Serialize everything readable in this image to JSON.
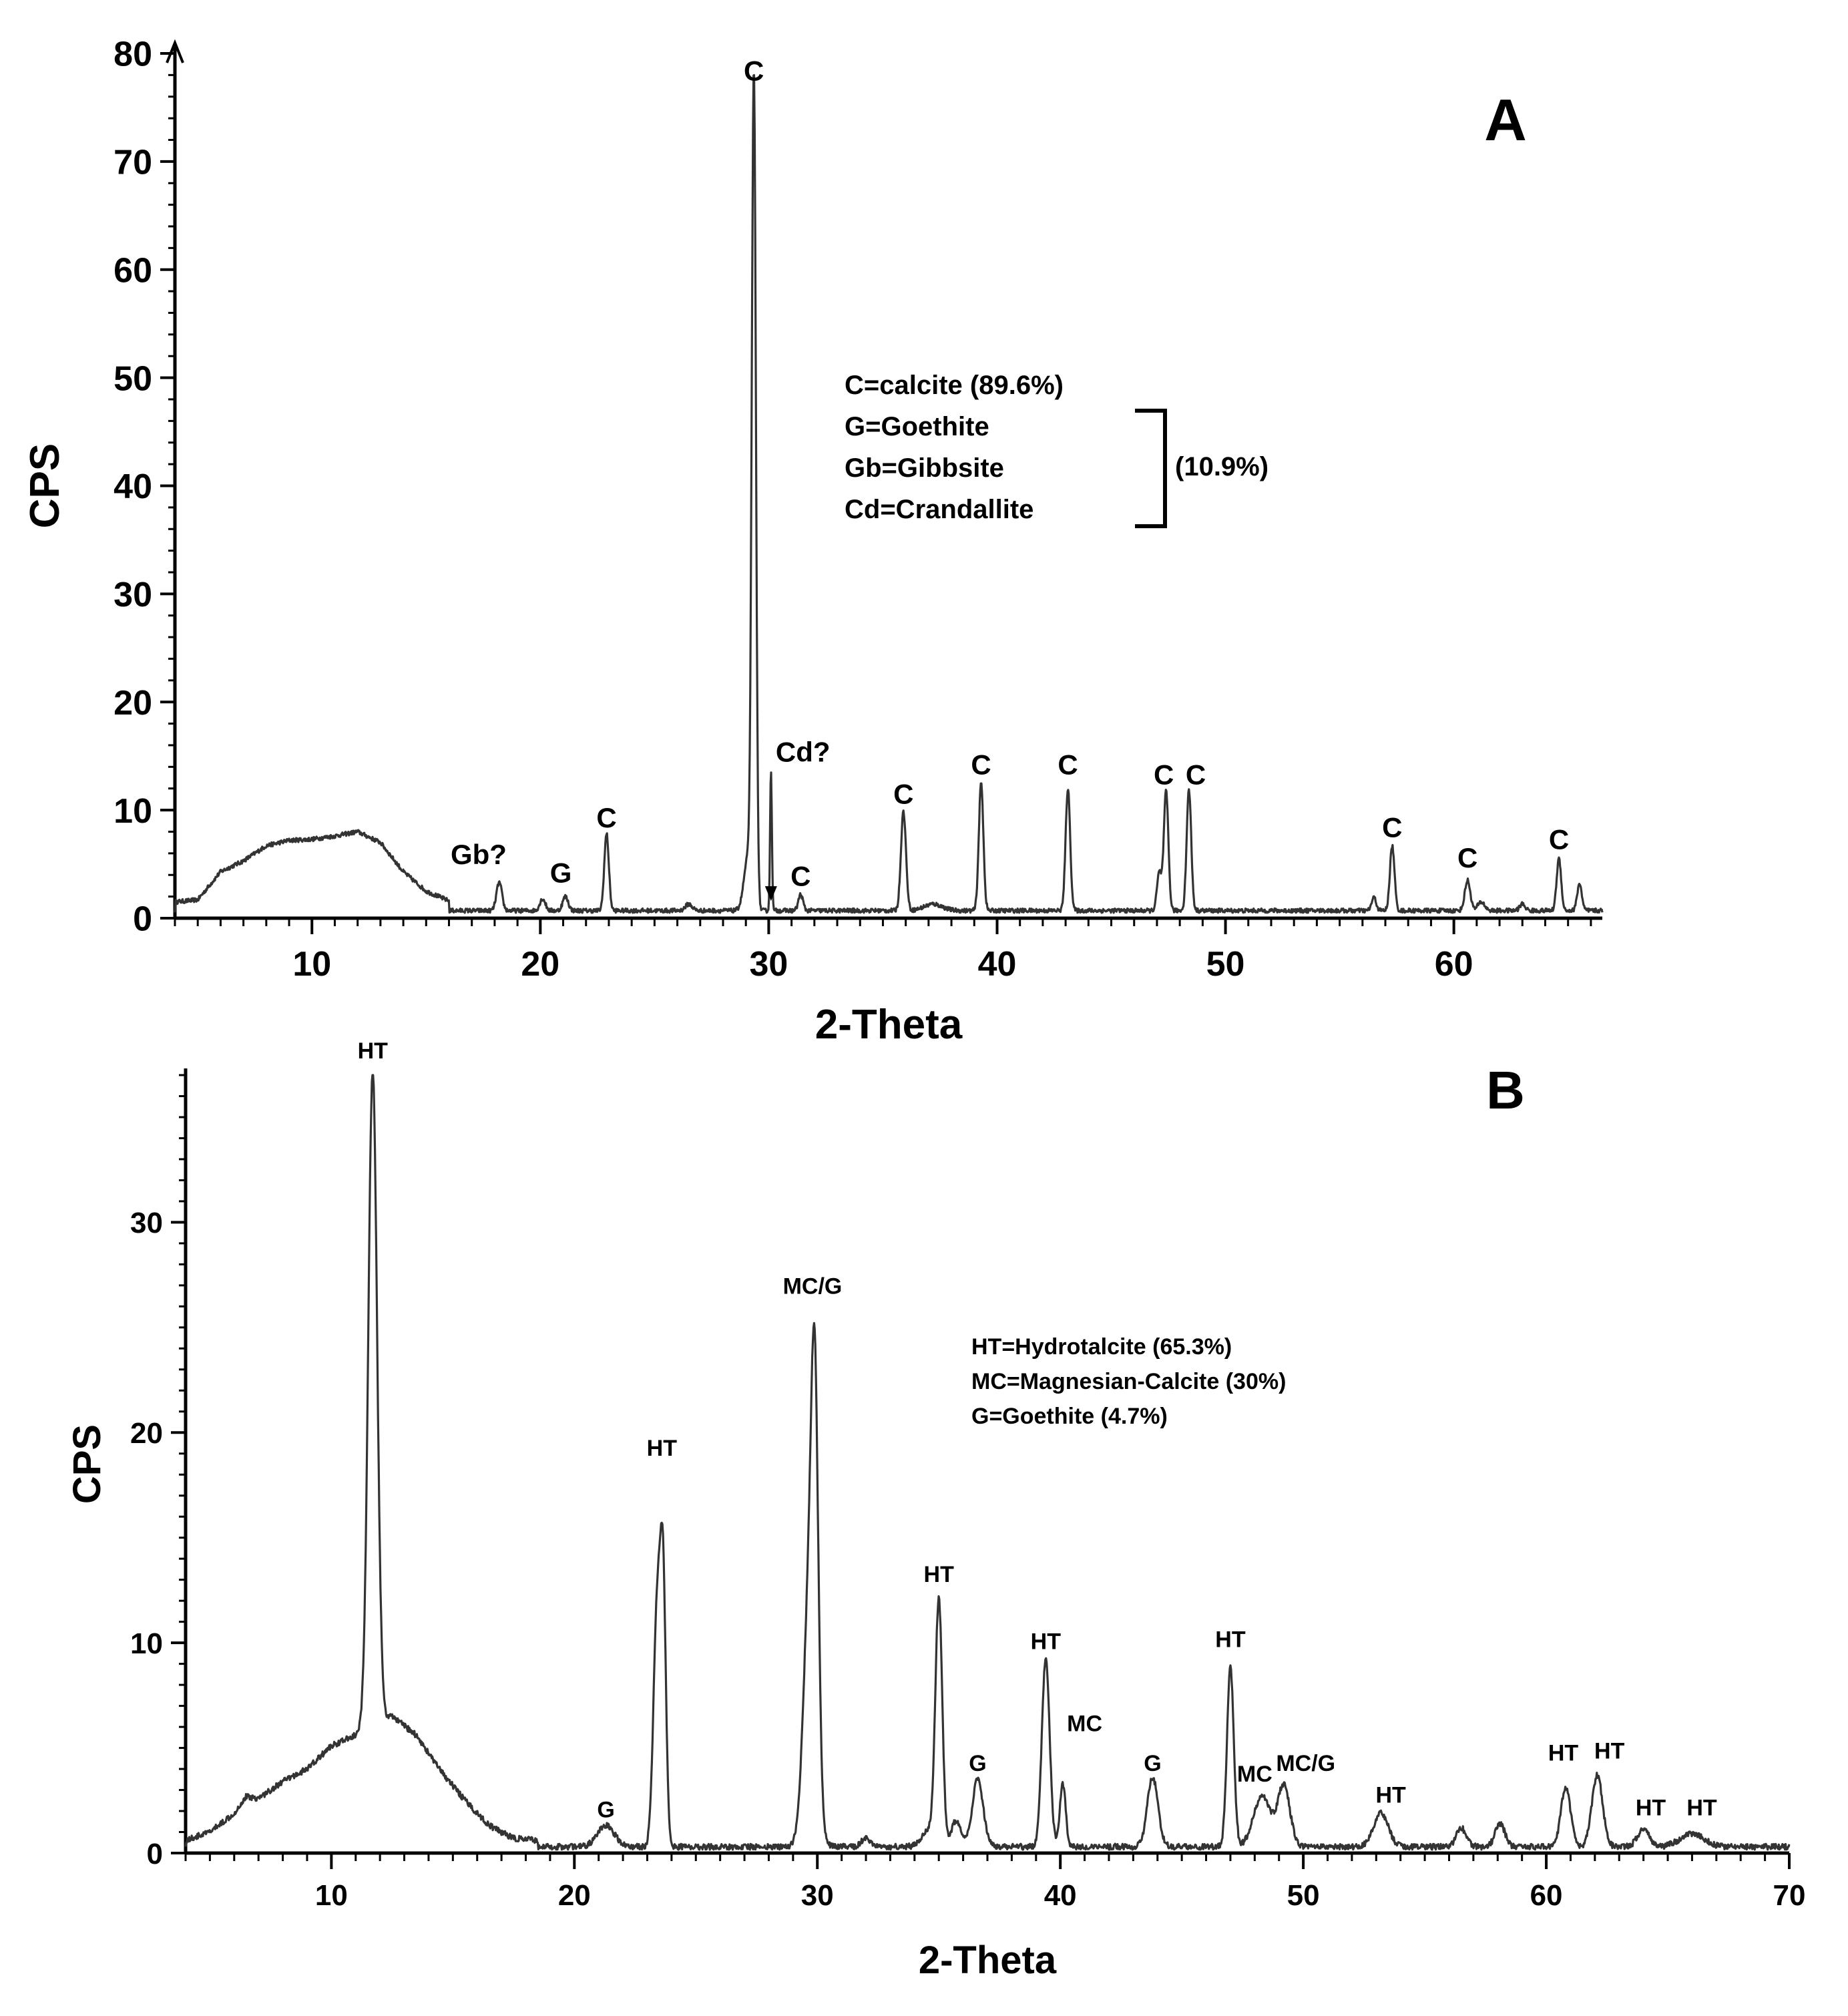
{
  "chart_data": [
    {
      "type": "line",
      "panel": "A",
      "xlabel": "2-Theta",
      "ylabel": "CPS",
      "xlim": [
        4,
        66.5
      ],
      "ylim": [
        0,
        80
      ],
      "xticks": [
        10,
        20,
        30,
        40,
        50,
        60
      ],
      "yticks": [
        0,
        10,
        20,
        30,
        40,
        50,
        60,
        70,
        80
      ],
      "color": "#333333",
      "baseline": 0.7,
      "hump": [
        [
          4,
          0.8
        ],
        [
          5,
          1.0
        ],
        [
          6,
          3.6
        ],
        [
          7,
          4.6
        ],
        [
          8,
          6.0
        ],
        [
          9,
          6.5
        ],
        [
          10,
          6.6
        ],
        [
          11,
          6.9
        ],
        [
          12,
          7.3
        ],
        [
          13,
          6.3
        ],
        [
          14,
          3.6
        ],
        [
          15,
          1.8
        ],
        [
          16,
          0.9
        ]
      ],
      "peaks": [
        {
          "x": 18.2,
          "y": 2.6,
          "w": 0.12
        },
        {
          "x": 20.1,
          "y": 1.1,
          "w": 0.12
        },
        {
          "x": 21.1,
          "y": 1.3,
          "w": 0.12
        },
        {
          "x": 22.9,
          "y": 7.1,
          "w": 0.1
        },
        {
          "x": 26.5,
          "y": 0.6,
          "w": 0.15
        },
        {
          "x": 29.1,
          "y": 5.0,
          "w": 0.18
        },
        {
          "x": 29.35,
          "y": 76.0,
          "w": 0.09
        },
        {
          "x": 30.1,
          "y": 13.0,
          "w": 0.04
        },
        {
          "x": 31.4,
          "y": 1.5,
          "w": 0.1
        },
        {
          "x": 35.9,
          "y": 9.2,
          "w": 0.11
        },
        {
          "x": 37.2,
          "y": 0.6,
          "w": 0.4
        },
        {
          "x": 39.3,
          "y": 11.8,
          "w": 0.1
        },
        {
          "x": 43.1,
          "y": 11.3,
          "w": 0.1
        },
        {
          "x": 47.1,
          "y": 3.5,
          "w": 0.1
        },
        {
          "x": 47.4,
          "y": 11.0,
          "w": 0.1
        },
        {
          "x": 48.4,
          "y": 11.2,
          "w": 0.1
        },
        {
          "x": 56.5,
          "y": 1.2,
          "w": 0.1
        },
        {
          "x": 57.3,
          "y": 6.0,
          "w": 0.1
        },
        {
          "x": 60.6,
          "y": 2.8,
          "w": 0.12
        },
        {
          "x": 61.2,
          "y": 0.8,
          "w": 0.15
        },
        {
          "x": 63.0,
          "y": 0.6,
          "w": 0.12
        },
        {
          "x": 64.6,
          "y": 4.8,
          "w": 0.1
        },
        {
          "x": 65.5,
          "y": 2.5,
          "w": 0.1
        }
      ],
      "annotations": [
        {
          "text": "C",
          "x": 29.35,
          "y": 77.5
        },
        {
          "text": "Cd?",
          "x": 31.5,
          "y": 14.5
        },
        {
          "text": "Gb?",
          "x": 17.3,
          "y": 5.0
        },
        {
          "text": "G",
          "x": 20.9,
          "y": 3.3
        },
        {
          "text": "C",
          "x": 22.9,
          "y": 8.4
        },
        {
          "text": "C",
          "x": 31.4,
          "y": 3.0
        },
        {
          "text": "C",
          "x": 35.9,
          "y": 10.6
        },
        {
          "text": "C",
          "x": 39.3,
          "y": 13.3
        },
        {
          "text": "C",
          "x": 43.1,
          "y": 13.3
        },
        {
          "text": "C",
          "x": 47.3,
          "y": 12.4
        },
        {
          "text": "C",
          "x": 48.7,
          "y": 12.4
        },
        {
          "text": "C",
          "x": 57.3,
          "y": 7.5
        },
        {
          "text": "C",
          "x": 60.6,
          "y": 4.7
        },
        {
          "text": "C",
          "x": 64.6,
          "y": 6.4
        }
      ],
      "arrow": {
        "x": 30.1,
        "y": 1.6
      },
      "legend_lines": [
        "C=calcite (89.6%)",
        "G=Goethite",
        "Gb=Gibbsite",
        "Cd=Crandallite"
      ],
      "legend_group": "(10.9%)",
      "noise_amp": 0.2
    },
    {
      "type": "line",
      "panel": "B",
      "xlabel": "2-Theta",
      "ylabel": "CPS",
      "xlim": [
        4,
        70
      ],
      "ylim": [
        0,
        37
      ],
      "xticks": [
        10,
        20,
        30,
        40,
        50,
        60,
        70
      ],
      "yticks": [
        0,
        10,
        20,
        30
      ],
      "color": "#333333",
      "baseline": 0.3,
      "hump": [
        [
          4,
          0.3
        ],
        [
          5,
          0.7
        ],
        [
          6,
          1.6
        ],
        [
          6.5,
          2.4
        ],
        [
          7,
          2.3
        ],
        [
          8,
          3.1
        ],
        [
          9,
          3.7
        ],
        [
          10,
          4.8
        ],
        [
          11,
          5.3
        ],
        [
          11.5,
          5.8
        ],
        [
          12.5,
          6.2
        ],
        [
          13.5,
          5.3
        ],
        [
          14.5,
          3.6
        ],
        [
          15.5,
          2.2
        ],
        [
          16.5,
          1.0
        ],
        [
          17.5,
          0.4
        ],
        [
          18.5,
          0.3
        ]
      ],
      "peaks": [
        {
          "x": 11.7,
          "y": 31.0,
          "w": 0.18
        },
        {
          "x": 21.3,
          "y": 1.0,
          "w": 0.35
        },
        {
          "x": 23.4,
          "y": 11.0,
          "w": 0.15
        },
        {
          "x": 23.65,
          "y": 12.0,
          "w": 0.12
        },
        {
          "x": 29.7,
          "y": 13.0,
          "w": 0.25
        },
        {
          "x": 29.9,
          "y": 15.0,
          "w": 0.14
        },
        {
          "x": 32.0,
          "y": 0.4,
          "w": 0.2
        },
        {
          "x": 34.6,
          "y": 0.8,
          "w": 0.3
        },
        {
          "x": 35.0,
          "y": 11.5,
          "w": 0.14
        },
        {
          "x": 35.7,
          "y": 1.2,
          "w": 0.2
        },
        {
          "x": 36.6,
          "y": 3.2,
          "w": 0.22
        },
        {
          "x": 39.4,
          "y": 9.0,
          "w": 0.16
        },
        {
          "x": 40.1,
          "y": 3.0,
          "w": 0.12
        },
        {
          "x": 43.8,
          "y": 3.3,
          "w": 0.22
        },
        {
          "x": 47.0,
          "y": 8.5,
          "w": 0.14
        },
        {
          "x": 48.3,
          "y": 2.4,
          "w": 0.35
        },
        {
          "x": 49.2,
          "y": 2.9,
          "w": 0.25
        },
        {
          "x": 53.2,
          "y": 1.6,
          "w": 0.3
        },
        {
          "x": 56.5,
          "y": 0.9,
          "w": 0.2
        },
        {
          "x": 58.1,
          "y": 1.1,
          "w": 0.2
        },
        {
          "x": 60.8,
          "y": 2.8,
          "w": 0.2
        },
        {
          "x": 62.1,
          "y": 3.4,
          "w": 0.22
        },
        {
          "x": 64.0,
          "y": 0.8,
          "w": 0.25
        },
        {
          "x": 66.0,
          "y": 0.6,
          "w": 0.5
        }
      ],
      "annotations": [
        {
          "text": "HT",
          "x": 11.7,
          "y": 37.8
        },
        {
          "text": "HT",
          "x": 23.6,
          "y": 18.9
        },
        {
          "text": "MC/G",
          "x": 29.8,
          "y": 26.6
        },
        {
          "text": "HT",
          "x": 35.0,
          "y": 12.9
        },
        {
          "text": "HT",
          "x": 39.4,
          "y": 9.7
        },
        {
          "text": "MC",
          "x": 41.0,
          "y": 5.8
        },
        {
          "text": "G",
          "x": 21.3,
          "y": 1.7
        },
        {
          "text": "G",
          "x": 36.6,
          "y": 3.9
        },
        {
          "text": "G",
          "x": 43.8,
          "y": 3.9
        },
        {
          "text": "HT",
          "x": 47.0,
          "y": 9.8
        },
        {
          "text": "MC",
          "x": 48.0,
          "y": 3.4
        },
        {
          "text": "MC/G",
          "x": 50.1,
          "y": 3.9
        },
        {
          "text": "HT",
          "x": 53.6,
          "y": 2.4
        },
        {
          "text": "HT",
          "x": 60.7,
          "y": 4.4
        },
        {
          "text": "HT",
          "x": 62.6,
          "y": 4.5
        },
        {
          "text": "HT",
          "x": 64.3,
          "y": 1.8
        },
        {
          "text": "HT",
          "x": 66.4,
          "y": 1.8
        }
      ],
      "legend_lines": [
        "HT=Hydrotalcite (65.3%)",
        "MC=Magnesian-Calcite (30%)",
        "G=Goethite (4.7%)"
      ],
      "noise_amp": 0.14
    }
  ]
}
